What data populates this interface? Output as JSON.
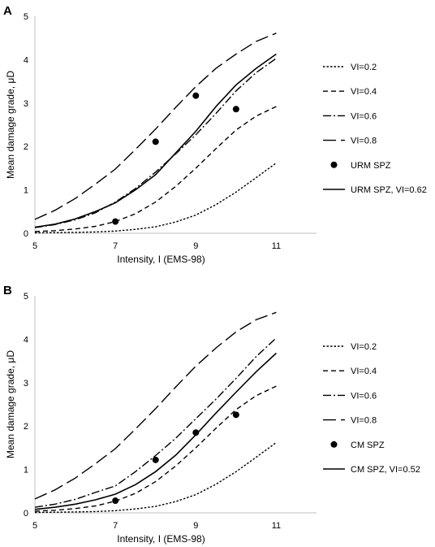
{
  "chart_data": [
    {
      "panel": "A",
      "type": "line",
      "xlabel": "Intensity, I (EMS-98)",
      "ylabel": "Mean damage grade, μD",
      "xticks": [
        5,
        7,
        9,
        11
      ],
      "yticks": [
        0,
        1,
        2,
        3,
        4,
        5
      ],
      "xlim": [
        5,
        12
      ],
      "ylim": [
        0,
        5
      ],
      "grid": false,
      "legend_position": "right",
      "series": [
        {
          "name": "VI=0.2",
          "style": "dot",
          "x": [
            5,
            5.5,
            6,
            6.5,
            7,
            7.5,
            8,
            8.5,
            9,
            9.5,
            10,
            10.5,
            11
          ],
          "y": [
            0.01,
            0.015,
            0.02,
            0.03,
            0.05,
            0.09,
            0.15,
            0.26,
            0.42,
            0.66,
            0.95,
            1.28,
            1.62
          ]
        },
        {
          "name": "VI=0.4",
          "style": "dash-short",
          "x": [
            5,
            5.5,
            6,
            6.5,
            7,
            7.5,
            8,
            8.5,
            9,
            9.5,
            10,
            10.5,
            11
          ],
          "y": [
            0.04,
            0.06,
            0.1,
            0.16,
            0.27,
            0.45,
            0.72,
            1.08,
            1.5,
            1.95,
            2.38,
            2.7,
            2.92
          ]
        },
        {
          "name": "VI=0.6",
          "style": "dash-dot",
          "x": [
            5,
            5.5,
            6,
            6.5,
            7,
            7.5,
            8,
            8.5,
            9,
            9.5,
            10,
            10.5,
            11
          ],
          "y": [
            0.13,
            0.2,
            0.31,
            0.47,
            0.72,
            1.03,
            1.41,
            1.83,
            2.27,
            2.76,
            3.28,
            3.7,
            4.03
          ]
        },
        {
          "name": "VI=0.8",
          "style": "dash-long",
          "x": [
            5,
            5.5,
            6,
            6.5,
            7,
            7.5,
            8,
            8.5,
            9,
            9.5,
            10,
            10.5,
            11
          ],
          "y": [
            0.32,
            0.53,
            0.8,
            1.13,
            1.48,
            1.93,
            2.4,
            2.9,
            3.38,
            3.8,
            4.13,
            4.42,
            4.61
          ]
        },
        {
          "name": "URM SPZ",
          "style": "marker",
          "x": [
            7,
            8,
            9,
            10
          ],
          "y": [
            0.27,
            2.11,
            3.17,
            2.86
          ]
        },
        {
          "name": "URM SPZ, VI=0.62",
          "style": "solid",
          "x": [
            5,
            5.5,
            6,
            6.5,
            7,
            7.5,
            8,
            8.5,
            9,
            9.5,
            10,
            10.5,
            11
          ],
          "y": [
            0.14,
            0.21,
            0.33,
            0.5,
            0.7,
            1.0,
            1.35,
            1.85,
            2.35,
            2.92,
            3.42,
            3.8,
            4.13
          ]
        }
      ]
    },
    {
      "panel": "B",
      "type": "line",
      "xlabel": "Intensity, I (EMS-98)",
      "ylabel": "Mean damage grade, μD",
      "xticks": [
        5,
        7,
        9,
        11
      ],
      "yticks": [
        0,
        1,
        2,
        3,
        4,
        5
      ],
      "xlim": [
        5,
        12
      ],
      "ylim": [
        0,
        5
      ],
      "grid": false,
      "legend_position": "right",
      "series": [
        {
          "name": "VI=0.2",
          "style": "dot",
          "x": [
            5,
            5.5,
            6,
            6.5,
            7,
            7.5,
            8,
            8.5,
            9,
            9.5,
            10,
            10.5,
            11
          ],
          "y": [
            0.01,
            0.015,
            0.02,
            0.03,
            0.05,
            0.09,
            0.15,
            0.26,
            0.42,
            0.66,
            0.95,
            1.28,
            1.62
          ]
        },
        {
          "name": "VI=0.4",
          "style": "dash-short",
          "x": [
            5,
            5.5,
            6,
            6.5,
            7,
            7.5,
            8,
            8.5,
            9,
            9.5,
            10,
            10.5,
            11
          ],
          "y": [
            0.04,
            0.06,
            0.1,
            0.16,
            0.27,
            0.45,
            0.72,
            1.08,
            1.5,
            1.95,
            2.38,
            2.7,
            2.92
          ]
        },
        {
          "name": "VI=0.6",
          "style": "dash-dot",
          "x": [
            5,
            5.5,
            6,
            6.5,
            7,
            7.5,
            8,
            8.5,
            9,
            9.5,
            10,
            10.5,
            11
          ],
          "y": [
            0.13,
            0.2,
            0.31,
            0.47,
            0.62,
            0.95,
            1.32,
            1.72,
            2.17,
            2.62,
            3.1,
            3.6,
            4.03
          ]
        },
        {
          "name": "VI=0.8",
          "style": "dash-long",
          "x": [
            5,
            5.5,
            6,
            6.5,
            7,
            7.5,
            8,
            8.5,
            9,
            9.5,
            10,
            10.5,
            11
          ],
          "y": [
            0.32,
            0.53,
            0.8,
            1.13,
            1.48,
            1.93,
            2.4,
            2.9,
            3.38,
            3.8,
            4.17,
            4.45,
            4.62
          ]
        },
        {
          "name": "CM SPZ",
          "style": "marker",
          "x": [
            7,
            8,
            9,
            10
          ],
          "y": [
            0.28,
            1.22,
            1.85,
            2.26
          ]
        },
        {
          "name": "CM SPZ, VI=0.52",
          "style": "solid",
          "x": [
            5,
            5.5,
            6,
            6.5,
            7,
            7.5,
            8,
            8.5,
            9,
            9.5,
            10,
            10.5,
            11
          ],
          "y": [
            0.08,
            0.13,
            0.2,
            0.3,
            0.43,
            0.65,
            0.95,
            1.33,
            1.8,
            2.3,
            2.78,
            3.25,
            3.68
          ]
        }
      ]
    }
  ],
  "panels": [
    {
      "letter": "A"
    },
    {
      "letter": "B"
    }
  ]
}
